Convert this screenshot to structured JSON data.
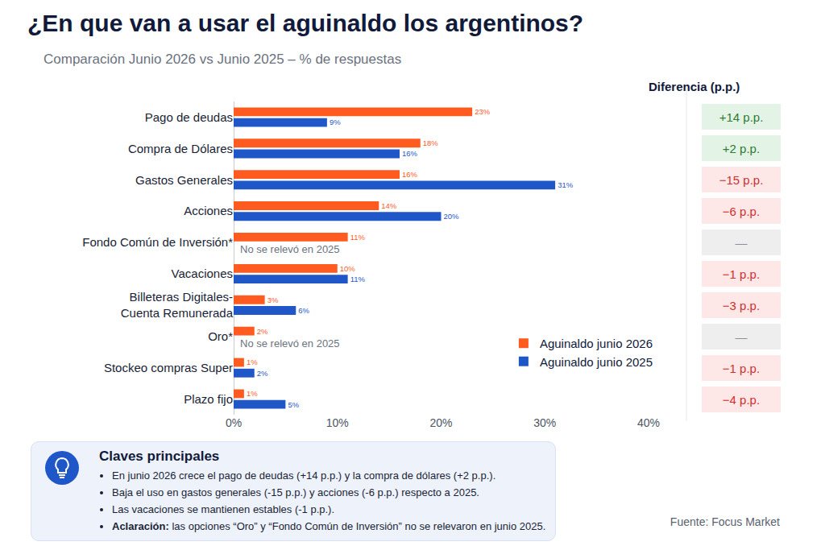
{
  "chart_data": {
    "type": "bar",
    "title": "¿En que van a usar el aguinaldo los argentinos?",
    "subtitle": "Comparación Junio 2026 vs Junio 2025 – % de respuestas",
    "orientation": "horizontal",
    "categories": [
      "Pago de deudas",
      "Compra de Dólares",
      "Gastos Generales",
      "Acciones",
      "Fondo Común de Inversión*",
      "Vacaciones",
      "Billeteras Digitales-Cuenta Remunerada",
      "Oro*",
      "Stockeo compras Super",
      "Plazo fijo"
    ],
    "series": [
      {
        "name": "Aguinaldo junio 2026",
        "color": "#ff5a1f",
        "values": [
          23,
          18,
          16,
          14,
          11,
          10,
          3,
          2,
          1,
          1
        ],
        "value_labels": [
          "23%",
          "18%",
          "16%",
          "14%",
          "11%",
          "10%",
          "3%",
          "2%",
          "1%",
          "1%"
        ]
      },
      {
        "name": "Aguinaldo junio 2025",
        "color": "#1f56c8",
        "values": [
          9,
          16,
          31,
          20,
          null,
          11,
          6,
          null,
          2,
          5
        ],
        "value_labels": [
          "9%",
          "16%",
          "31%",
          "20%",
          null,
          "11%",
          "6%",
          null,
          "2%",
          "5%"
        ]
      }
    ],
    "xlim": [
      0,
      40
    ],
    "xticks": [
      {
        "value": 0,
        "label": "0%"
      },
      {
        "value": 10,
        "label": "10%"
      },
      {
        "value": 20,
        "label": "20%"
      },
      {
        "value": 30,
        "label": "30%"
      },
      {
        "value": 40,
        "label": "40%"
      }
    ],
    "grid": false,
    "data_labels": true,
    "legend": "bottom right",
    "annotations": [
      {
        "category": "Fondo Común de Inversión*",
        "text": "No se relevó en 2025"
      },
      {
        "category": "Oro*",
        "text": "No se relevó en 2025"
      }
    ],
    "differences": {
      "title": "Diferencia (p.p.)",
      "values": [
        14,
        2,
        -15,
        -6,
        null,
        -1,
        -3,
        null,
        -1,
        -4
      ],
      "value_labels": [
        "+14 p.p.",
        "+2 p.p.",
        "−15 p.p.",
        "−6 p.p.",
        "—",
        "−1 p.p.",
        "−3 p.p.",
        "—",
        "−1 p.p.",
        "−4 p.p."
      ]
    },
    "key_points": {
      "title": "Claves principales",
      "items": [
        "En junio 2026 crece el pago de deudas (+14 p.p.) y la compra de dólares (+2 p.p.).",
        "Baja el uso en gastos generales (-15 p.p.) y acciones (-6 p.p.) respecto a 2025.",
        "Las vacaciones se mantienen estables (-1 p.p.)."
      ],
      "note_label": "Aclaración:",
      "note": "las opciones “Oro” y “Fondo Común de Inversión” no se relevaron en junio 2025."
    },
    "source": "Fuente: Focus Market"
  }
}
